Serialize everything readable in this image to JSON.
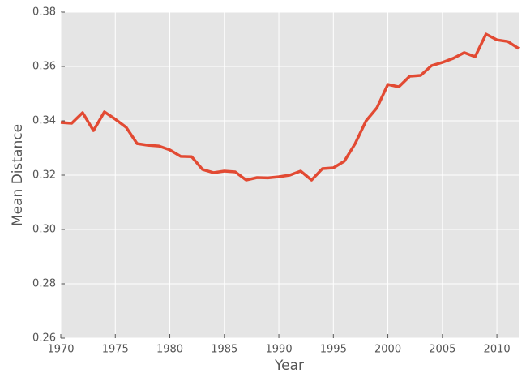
{
  "chart_data": {
    "type": "line",
    "x": [
      1970,
      1971,
      1972,
      1973,
      1974,
      1975,
      1976,
      1977,
      1978,
      1979,
      1980,
      1981,
      1982,
      1983,
      1984,
      1985,
      1986,
      1987,
      1988,
      1989,
      1990,
      1991,
      1992,
      1993,
      1994,
      1995,
      1996,
      1997,
      1998,
      1999,
      2000,
      2001,
      2002,
      2003,
      2004,
      2005,
      2006,
      2007,
      2008,
      2009,
      2010,
      2011,
      2012
    ],
    "series": [
      {
        "color": "#e24a33",
        "values": [
          0.3394,
          0.3391,
          0.343,
          0.3364,
          0.3433,
          0.3406,
          0.3376,
          0.3316,
          0.331,
          0.3307,
          0.3293,
          0.3269,
          0.3268,
          0.3221,
          0.3209,
          0.3215,
          0.3212,
          0.3182,
          0.3191,
          0.319,
          0.3194,
          0.32,
          0.3215,
          0.3182,
          0.3224,
          0.3227,
          0.3251,
          0.3316,
          0.34,
          0.3448,
          0.3534,
          0.3525,
          0.3564,
          0.3567,
          0.3603,
          0.3615,
          0.363,
          0.3651,
          0.3636,
          0.3719,
          0.3698,
          0.3692,
          0.3666
        ]
      }
    ],
    "xlabel": "Year",
    "ylabel": "Mean Distance",
    "xlim": [
      1970,
      2012
    ],
    "xticks": [
      1970,
      1975,
      1980,
      1985,
      1990,
      1995,
      2000,
      2005,
      2010
    ],
    "ylim": [
      0.26,
      0.38
    ],
    "yticks": [
      0.26,
      0.28,
      {
        "value": 0.3,
        "label": "0.30"
      },
      0.32,
      0.34,
      0.36,
      0.38
    ],
    "grid": true,
    "background": "#e5e5e5"
  }
}
